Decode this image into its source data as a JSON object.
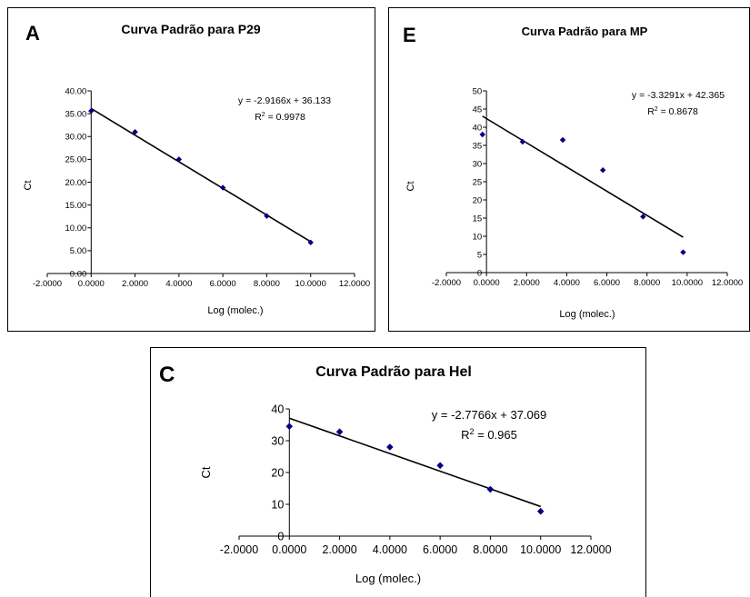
{
  "chart_data": [
    {
      "type": "scatter",
      "panel_letter": "A",
      "title": "Curva Padrão para P29",
      "xlabel": "Log (molec.)",
      "ylabel": "Ct",
      "xlim": [
        -2,
        12
      ],
      "ylim": [
        0,
        40
      ],
      "x_ticks": [
        "-2.0000",
        "0.0000",
        "2.0000",
        "4.0000",
        "6.0000",
        "8.0000",
        "10.0000",
        "12.0000"
      ],
      "y_ticks": [
        "0.00",
        "5.00",
        "10.00",
        "15.00",
        "20.00",
        "25.00",
        "30.00",
        "35.00",
        "40.00"
      ],
      "series": [
        {
          "x": [
            0,
            2,
            4,
            6,
            8,
            10
          ],
          "y": [
            35.6,
            31.0,
            25.0,
            18.8,
            12.6,
            6.8
          ]
        }
      ],
      "trendline": {
        "slope": -2.9166,
        "intercept": 36.133,
        "x_range": [
          0,
          10
        ]
      },
      "equation": "y = -2.9166x + 36.133",
      "r2_label": "R",
      "r2_sup": "2",
      "r2_value": " = 0.9978",
      "marker_color": "#000080"
    },
    {
      "type": "scatter",
      "panel_letter": "E",
      "title": "Curva Padrão para MP",
      "xlabel": "Log (molec.)",
      "ylabel": "Ct",
      "xlim": [
        -2,
        12
      ],
      "ylim": [
        0,
        50
      ],
      "x_ticks": [
        "-2.0000",
        "0.0000",
        "2.0000",
        "4.0000",
        "6.0000",
        "8.0000",
        "10.0000",
        "12.0000"
      ],
      "y_ticks": [
        "0",
        "5",
        "10",
        "15",
        "20",
        "25",
        "30",
        "35",
        "40",
        "45",
        "50"
      ],
      "series": [
        {
          "x": [
            -0.2,
            1.8,
            3.8,
            5.8,
            7.8,
            9.8
          ],
          "y": [
            38.0,
            36.0,
            36.5,
            28.2,
            15.4,
            5.6
          ]
        }
      ],
      "trendline": {
        "slope": -3.3291,
        "intercept": 42.365,
        "x_range": [
          -0.2,
          9.8
        ]
      },
      "equation": "y = -3.3291x + 42.365",
      "r2_label": "R",
      "r2_sup": "2",
      "r2_value": " = 0.8678",
      "marker_color": "#000080"
    },
    {
      "type": "scatter",
      "panel_letter": "C",
      "title": "Curva Padrão para Hel",
      "xlabel": "Log (molec.)",
      "ylabel": "Ct",
      "xlim": [
        -2,
        12
      ],
      "ylim": [
        0,
        40
      ],
      "x_ticks": [
        "-2.0000",
        "0.0000",
        "2.0000",
        "4.0000",
        "6.0000",
        "8.0000",
        "10.0000",
        "12.0000"
      ],
      "y_ticks": [
        "0",
        "10",
        "20",
        "30",
        "40"
      ],
      "series": [
        {
          "x": [
            0,
            2,
            4,
            6,
            8,
            10
          ],
          "y": [
            34.5,
            32.8,
            28.0,
            22.2,
            14.7,
            7.8
          ]
        }
      ],
      "trendline": {
        "slope": -2.7766,
        "intercept": 37.069,
        "x_range": [
          0,
          10
        ]
      },
      "equation": "y = -2.7766x + 37.069",
      "r2_label": "R",
      "r2_sup": "2",
      "r2_value": " = 0.965",
      "marker_color": "#000080"
    }
  ]
}
